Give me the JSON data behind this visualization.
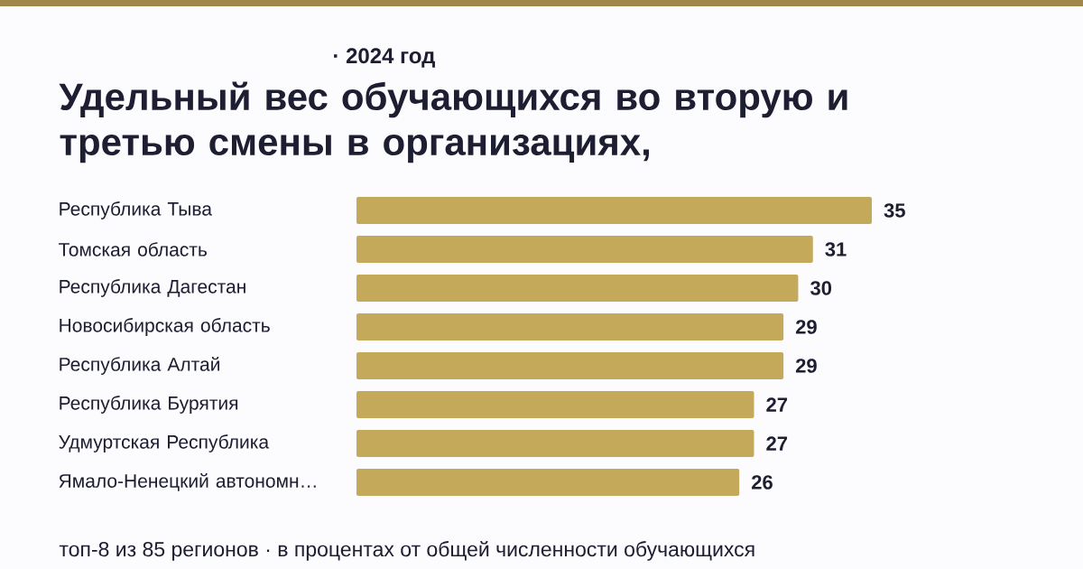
{
  "chart_data": {
    "type": "bar",
    "orientation": "horizontal",
    "subtitle": "· 2024 год",
    "title": "Удельный вес обучающихся во вторую и третью смены в организациях,",
    "categories": [
      "Республика Тыва",
      "Томская область",
      "Республика Дагестан",
      "Новосибирская область",
      "Республика Алтай",
      "Республика Бурятия",
      "Удмуртская Республика",
      "Ямало-Ненецкий автономн…"
    ],
    "values": [
      35,
      31,
      30,
      29,
      29,
      27,
      27,
      26
    ],
    "color": "#c5a95a",
    "data_labels": true,
    "annotations": [
      "топ-8 из 85 регионов · в процентах от общей численности обучающихся"
    ]
  }
}
